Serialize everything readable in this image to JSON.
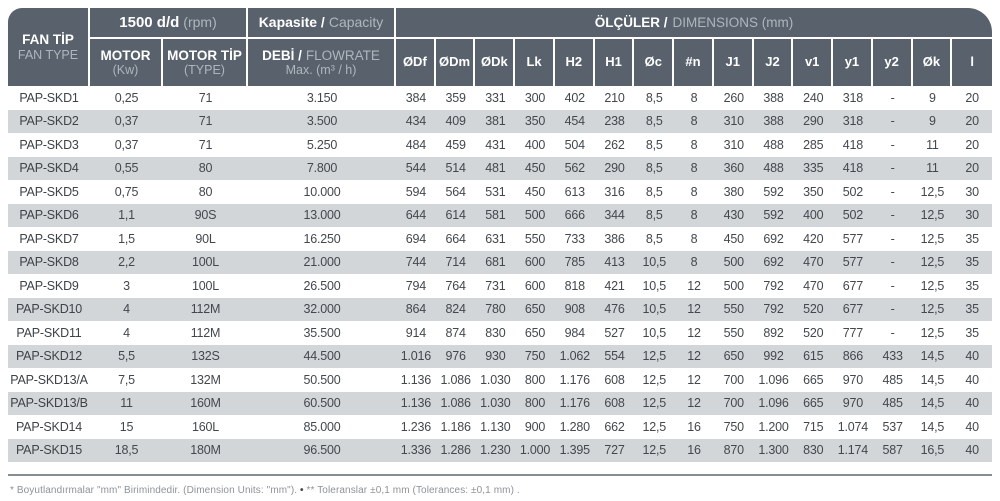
{
  "header": {
    "fan_type": {
      "tr": "FAN TİP",
      "en": "FAN TYPE"
    },
    "rpm_group": {
      "bold": "1500 d/d",
      "light": "(rpm)"
    },
    "capacity_group": {
      "bold": "Kapasite /",
      "light": "Capacity"
    },
    "motor": {
      "bold": "MOTOR",
      "light": "(Kw)"
    },
    "motor_type": {
      "bold": "MOTOR TİP",
      "light": "(TYPE)"
    },
    "flowrate": {
      "bold": "DEBİ /",
      "light": "FLOWRATE",
      "line2": "Max. (m³ / h)"
    },
    "dimensions_group": {
      "bold": "ÖLÇÜLER /",
      "light": "DIMENSIONS (mm)"
    },
    "dimension_columns": [
      "ØDf",
      "ØDm",
      "ØDk",
      "Lk",
      "H2",
      "H1",
      "Øc",
      "#n",
      "J1",
      "J2",
      "v1",
      "y1",
      "y2",
      "Øk",
      "l"
    ]
  },
  "rows": [
    {
      "name": "PAP-SKD1",
      "motor": "0,25",
      "type": "71",
      "flow": "3.150",
      "dims": [
        "384",
        "359",
        "331",
        "300",
        "402",
        "210",
        "8,5",
        "8",
        "260",
        "388",
        "240",
        "318",
        "-",
        "9",
        "20"
      ]
    },
    {
      "name": "PAP-SKD2",
      "motor": "0,37",
      "type": "71",
      "flow": "3.500",
      "dims": [
        "434",
        "409",
        "381",
        "350",
        "454",
        "238",
        "8,5",
        "8",
        "310",
        "388",
        "290",
        "318",
        "-",
        "9",
        "20"
      ]
    },
    {
      "name": "PAP-SKD3",
      "motor": "0,37",
      "type": "71",
      "flow": "5.250",
      "dims": [
        "484",
        "459",
        "431",
        "400",
        "504",
        "262",
        "8,5",
        "8",
        "310",
        "488",
        "285",
        "418",
        "-",
        "11",
        "20"
      ]
    },
    {
      "name": "PAP-SKD4",
      "motor": "0,55",
      "type": "80",
      "flow": "7.800",
      "dims": [
        "544",
        "514",
        "481",
        "450",
        "562",
        "290",
        "8,5",
        "8",
        "360",
        "488",
        "335",
        "418",
        "-",
        "11",
        "20"
      ]
    },
    {
      "name": "PAP-SKD5",
      "motor": "0,75",
      "type": "80",
      "flow": "10.000",
      "dims": [
        "594",
        "564",
        "531",
        "450",
        "613",
        "316",
        "8,5",
        "8",
        "380",
        "592",
        "350",
        "502",
        "-",
        "12,5",
        "30"
      ]
    },
    {
      "name": "PAP-SKD6",
      "motor": "1,1",
      "type": "90S",
      "flow": "13.000",
      "dims": [
        "644",
        "614",
        "581",
        "500",
        "666",
        "344",
        "8,5",
        "8",
        "430",
        "592",
        "400",
        "502",
        "-",
        "12,5",
        "30"
      ]
    },
    {
      "name": "PAP-SKD7",
      "motor": "1,5",
      "type": "90L",
      "flow": "16.250",
      "dims": [
        "694",
        "664",
        "631",
        "550",
        "733",
        "386",
        "8,5",
        "8",
        "450",
        "692",
        "420",
        "577",
        "-",
        "12,5",
        "35"
      ]
    },
    {
      "name": "PAP-SKD8",
      "motor": "2,2",
      "type": "100L",
      "flow": "21.000",
      "dims": [
        "744",
        "714",
        "681",
        "600",
        "785",
        "413",
        "10,5",
        "8",
        "500",
        "692",
        "470",
        "577",
        "-",
        "12,5",
        "35"
      ]
    },
    {
      "name": "PAP-SKD9",
      "motor": "3",
      "type": "100L",
      "flow": "26.500",
      "dims": [
        "794",
        "764",
        "731",
        "600",
        "818",
        "421",
        "10,5",
        "12",
        "500",
        "792",
        "470",
        "677",
        "-",
        "12,5",
        "35"
      ]
    },
    {
      "name": "PAP-SKD10",
      "motor": "4",
      "type": "112M",
      "flow": "32.000",
      "dims": [
        "864",
        "824",
        "780",
        "650",
        "908",
        "476",
        "10,5",
        "12",
        "550",
        "792",
        "520",
        "677",
        "-",
        "12,5",
        "35"
      ]
    },
    {
      "name": "PAP-SKD11",
      "motor": "4",
      "type": "112M",
      "flow": "35.500",
      "dims": [
        "914",
        "874",
        "830",
        "650",
        "984",
        "527",
        "10,5",
        "12",
        "550",
        "892",
        "520",
        "777",
        "-",
        "12,5",
        "35"
      ]
    },
    {
      "name": "PAP-SKD12",
      "motor": "5,5",
      "type": "132S",
      "flow": "44.500",
      "dims": [
        "1.016",
        "976",
        "930",
        "750",
        "1.062",
        "554",
        "12,5",
        "12",
        "650",
        "992",
        "615",
        "866",
        "433",
        "14,5",
        "40"
      ]
    },
    {
      "name": "PAP-SKD13/A",
      "motor": "7,5",
      "type": "132M",
      "flow": "50.500",
      "dims": [
        "1.136",
        "1.086",
        "1.030",
        "800",
        "1.176",
        "608",
        "12,5",
        "12",
        "700",
        "1.096",
        "665",
        "970",
        "485",
        "14,5",
        "40"
      ]
    },
    {
      "name": "PAP-SKD13/B",
      "motor": "11",
      "type": "160M",
      "flow": "60.500",
      "dims": [
        "1.136",
        "1.086",
        "1.030",
        "800",
        "1.176",
        "608",
        "12,5",
        "12",
        "700",
        "1.096",
        "665",
        "970",
        "485",
        "14,5",
        "40"
      ]
    },
    {
      "name": "PAP-SKD14",
      "motor": "15",
      "type": "160L",
      "flow": "85.000",
      "dims": [
        "1.236",
        "1.186",
        "1.130",
        "900",
        "1.280",
        "662",
        "12,5",
        "16",
        "750",
        "1.200",
        "715",
        "1.074",
        "537",
        "14,5",
        "40"
      ]
    },
    {
      "name": "PAP-SKD15",
      "motor": "18,5",
      "type": "180M",
      "flow": "96.500",
      "dims": [
        "1.336",
        "1.286",
        "1.230",
        "1.000",
        "1.395",
        "727",
        "12,5",
        "16",
        "870",
        "1.300",
        "830",
        "1.174",
        "587",
        "16,5",
        "40"
      ]
    }
  ],
  "footer": {
    "note1": "* Boyutlandırmalar \"mm\" Birimindedir. (Dimension Units: \"mm\").",
    "bullet": "•",
    "note2": "** Toleranslar ±0,1 mm (Tolerances: ±0,1 mm) ."
  },
  "colors": {
    "header_bg": "#59626C",
    "header_text": "#FFFFFF",
    "header_subtext": "#AEB6BD",
    "stripe": "#D3D6D9",
    "body_text": "#43484D",
    "divider": "#878D92",
    "footer_text": "#8D9399"
  }
}
